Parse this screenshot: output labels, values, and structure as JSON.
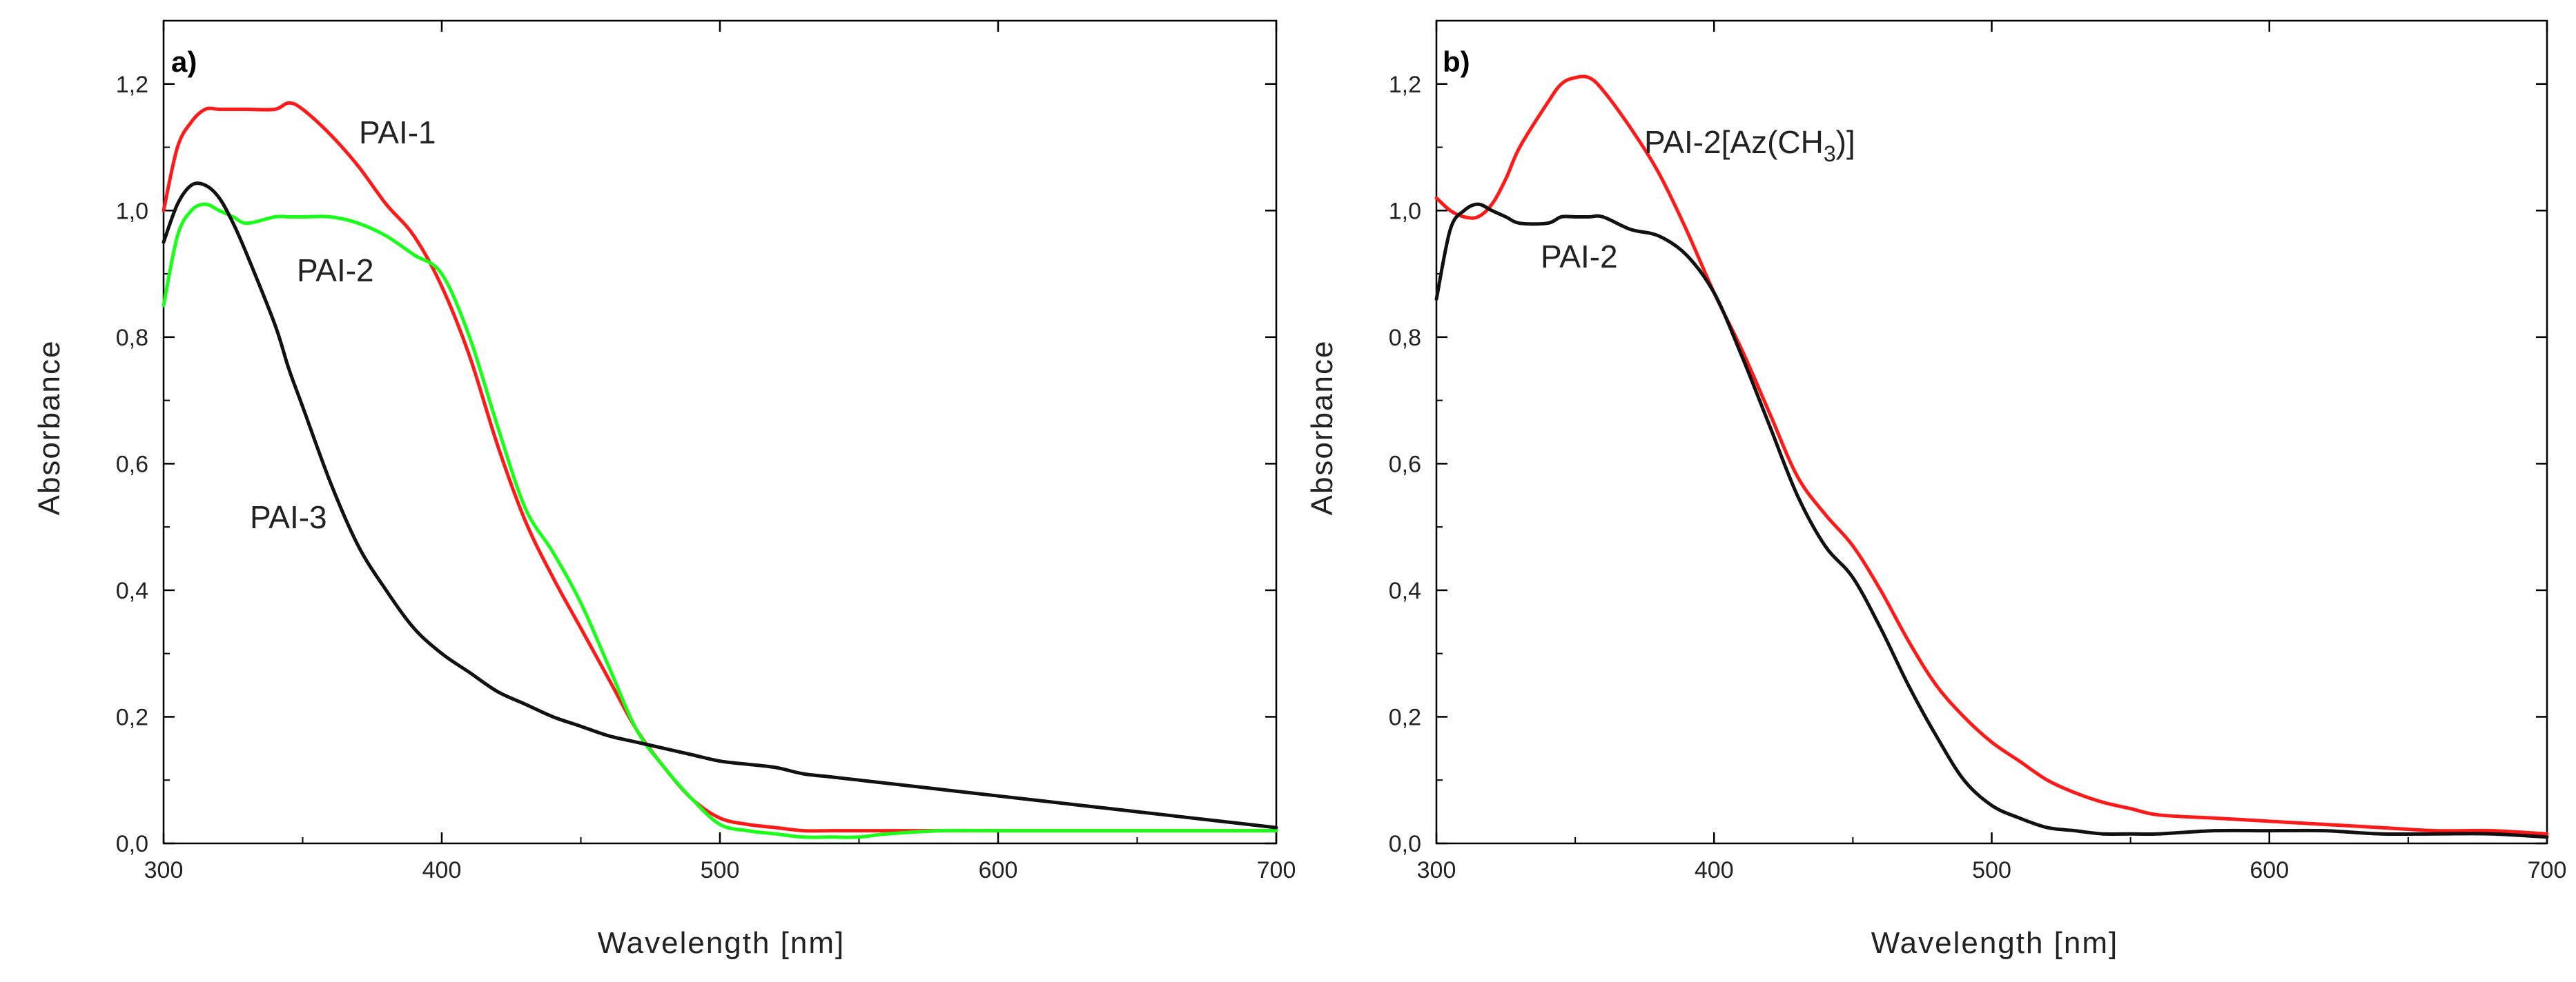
{
  "chart_data": [
    {
      "type": "line",
      "panel_label": "a)",
      "title": "",
      "xlabel": "Wavelength [nm]",
      "ylabel": "Absorbance",
      "xlim": [
        300,
        700
      ],
      "ylim": [
        0.0,
        1.3
      ],
      "xticks": [
        "300",
        "400",
        "500",
        "600",
        "700"
      ],
      "yticks": [
        "0,0",
        "0,2",
        "0,4",
        "0,6",
        "0,8",
        "1,0",
        "1,2"
      ],
      "x": [
        300,
        305,
        310,
        315,
        320,
        325,
        330,
        340,
        345,
        350,
        360,
        370,
        380,
        390,
        400,
        410,
        420,
        430,
        440,
        450,
        460,
        470,
        480,
        490,
        500,
        510,
        520,
        530,
        540,
        550,
        560,
        580,
        600,
        620,
        640,
        660,
        680,
        700
      ],
      "series": [
        {
          "name": "PAI-1",
          "color": "#ff1a1a",
          "annotation": "PAI-1",
          "values": [
            1.0,
            1.1,
            1.14,
            1.16,
            1.16,
            1.16,
            1.16,
            1.16,
            1.17,
            1.16,
            1.12,
            1.07,
            1.01,
            0.96,
            0.88,
            0.77,
            0.63,
            0.51,
            0.42,
            0.34,
            0.26,
            0.18,
            0.12,
            0.07,
            0.04,
            0.03,
            0.025,
            0.02,
            0.02,
            0.02,
            0.02,
            0.02,
            0.02,
            0.02,
            0.02,
            0.02,
            0.02,
            0.02
          ]
        },
        {
          "name": "PAI-2",
          "color": "#1aff1a",
          "annotation": "PAI-2",
          "values": [
            0.85,
            0.96,
            1.0,
            1.01,
            1.0,
            0.99,
            0.98,
            0.99,
            0.99,
            0.99,
            0.99,
            0.98,
            0.96,
            0.93,
            0.9,
            0.8,
            0.66,
            0.53,
            0.46,
            0.38,
            0.28,
            0.18,
            0.12,
            0.07,
            0.03,
            0.02,
            0.015,
            0.01,
            0.01,
            0.01,
            0.015,
            0.02,
            0.02,
            0.02,
            0.02,
            0.02,
            0.02,
            0.02
          ]
        },
        {
          "name": "PAI-3",
          "color": "#111111",
          "annotation": "PAI-3",
          "values": [
            0.95,
            1.01,
            1.04,
            1.04,
            1.02,
            0.98,
            0.93,
            0.82,
            0.75,
            0.69,
            0.57,
            0.47,
            0.4,
            0.34,
            0.3,
            0.27,
            0.24,
            0.22,
            0.2,
            0.185,
            0.17,
            0.16,
            0.15,
            0.14,
            0.13,
            0.125,
            0.12,
            0.11,
            0.105,
            0.1,
            0.095,
            0.085,
            0.075,
            0.065,
            0.055,
            0.045,
            0.035,
            0.025
          ]
        }
      ]
    },
    {
      "type": "line",
      "panel_label": "b)",
      "title": "",
      "xlabel": "Wavelength [nm]",
      "ylabel": "Absorbance",
      "xlim": [
        300,
        700
      ],
      "ylim": [
        0.0,
        1.3
      ],
      "xticks": [
        "300",
        "400",
        "500",
        "600",
        "700"
      ],
      "yticks": [
        "0,0",
        "0,2",
        "0,4",
        "0,6",
        "0,8",
        "1,0",
        "1,2"
      ],
      "x": [
        300,
        305,
        310,
        315,
        320,
        325,
        330,
        340,
        345,
        350,
        355,
        360,
        370,
        380,
        390,
        400,
        410,
        420,
        430,
        440,
        450,
        460,
        470,
        480,
        490,
        500,
        510,
        520,
        530,
        540,
        550,
        560,
        580,
        600,
        620,
        640,
        660,
        680,
        700
      ],
      "series": [
        {
          "name": "PAI-2[Az(CH3)]",
          "color": "#ff1a1a",
          "annotation": "PAI-2[Az(CH",
          "annotation_sub": "3",
          "annotation_end": ")]",
          "values": [
            1.02,
            1.0,
            0.99,
            0.99,
            1.01,
            1.05,
            1.1,
            1.17,
            1.2,
            1.21,
            1.21,
            1.19,
            1.13,
            1.06,
            0.97,
            0.87,
            0.78,
            0.68,
            0.58,
            0.52,
            0.47,
            0.4,
            0.32,
            0.25,
            0.2,
            0.16,
            0.13,
            0.1,
            0.08,
            0.065,
            0.055,
            0.045,
            0.04,
            0.035,
            0.03,
            0.025,
            0.02,
            0.02,
            0.015
          ]
        },
        {
          "name": "PAI-2",
          "color": "#111111",
          "annotation": "PAI-2",
          "values": [
            0.86,
            0.97,
            1.0,
            1.01,
            1.0,
            0.99,
            0.98,
            0.98,
            0.99,
            0.99,
            0.99,
            0.99,
            0.97,
            0.96,
            0.93,
            0.87,
            0.77,
            0.66,
            0.55,
            0.47,
            0.42,
            0.34,
            0.25,
            0.17,
            0.1,
            0.06,
            0.04,
            0.025,
            0.02,
            0.015,
            0.015,
            0.015,
            0.02,
            0.02,
            0.02,
            0.015,
            0.015,
            0.015,
            0.01
          ]
        }
      ]
    }
  ]
}
